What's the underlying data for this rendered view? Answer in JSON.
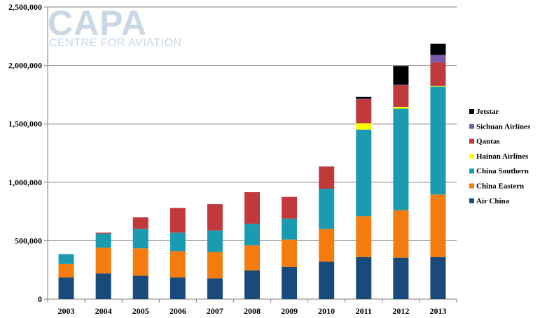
{
  "logo": {
    "main": "CAPA",
    "sub": "CENTRE FOR AVIATION"
  },
  "chart_data": {
    "type": "bar",
    "stacked": true,
    "categories": [
      "2003",
      "2004",
      "2005",
      "2006",
      "2007",
      "2008",
      "2009",
      "2010",
      "2011",
      "2012",
      "2013"
    ],
    "ylim": [
      0,
      2500000
    ],
    "yticks": [
      0,
      500000,
      1000000,
      1500000,
      2000000,
      2500000
    ],
    "ytick_labels": [
      "0",
      "500,000",
      "1,000,000",
      "1,500,000",
      "2,000,000",
      "2,500,000"
    ],
    "grid": "horizontal",
    "legend_position": "right",
    "series": [
      {
        "name": "Air China",
        "color": "#1a4a7a",
        "values": [
          185000,
          220000,
          200000,
          185000,
          178000,
          245000,
          275000,
          320000,
          360000,
          355000,
          360000
        ]
      },
      {
        "name": "China Eastern",
        "color": "#f47c0e",
        "values": [
          115000,
          220000,
          235000,
          225000,
          225000,
          215000,
          235000,
          280000,
          350000,
          405000,
          535000
        ]
      },
      {
        "name": "China Southern",
        "color": "#1a9bb0",
        "values": [
          85000,
          120000,
          165000,
          160000,
          185000,
          185000,
          180000,
          345000,
          740000,
          870000,
          925000
        ]
      },
      {
        "name": "Hainan Airlines",
        "color": "#ffff00",
        "values": [
          0,
          0,
          0,
          0,
          0,
          0,
          0,
          0,
          55000,
          15000,
          5000
        ]
      },
      {
        "name": "Qantas",
        "color": "#c0393b",
        "values": [
          0,
          10000,
          100000,
          210000,
          225000,
          270000,
          185000,
          190000,
          205000,
          185000,
          200000
        ]
      },
      {
        "name": "Sichuan Airlines",
        "color": "#7b5ba8",
        "values": [
          0,
          0,
          0,
          0,
          0,
          0,
          0,
          0,
          5000,
          5000,
          65000
        ]
      },
      {
        "name": "Jetstar",
        "color": "#000000",
        "values": [
          0,
          0,
          0,
          0,
          0,
          0,
          0,
          0,
          15000,
          160000,
          95000
        ]
      }
    ],
    "legend_order": [
      "Jetstar",
      "Sichuan Airlines",
      "Qantas",
      "Hainan Airlines",
      "China Southern",
      "China Eastern",
      "Air China"
    ]
  }
}
